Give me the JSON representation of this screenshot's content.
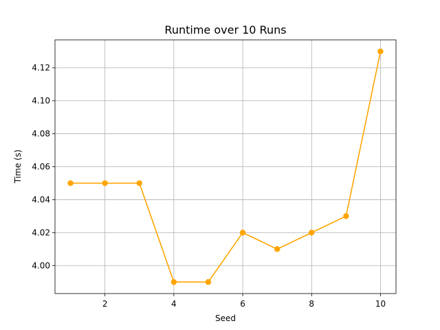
{
  "chart_data": {
    "type": "line",
    "title": "Runtime over 10 Runs",
    "xlabel": "Seed",
    "ylabel": "Time (s)",
    "x": [
      1,
      2,
      3,
      4,
      5,
      6,
      7,
      8,
      9,
      10
    ],
    "series": [
      {
        "values": [
          4.05,
          4.05,
          4.05,
          3.99,
          3.99,
          4.02,
          4.01,
          4.02,
          4.03,
          4.13
        ]
      }
    ],
    "xlim": [
      0.55,
      10.45
    ],
    "ylim": [
      3.983,
      4.137
    ],
    "xticks": [
      2,
      4,
      6,
      8,
      10
    ],
    "yticks": [
      4.0,
      4.02,
      4.04,
      4.06,
      4.08,
      4.1,
      4.12
    ],
    "ytick_labels": [
      "4.00",
      "4.02",
      "4.04",
      "4.06",
      "4.08",
      "4.10",
      "4.12"
    ],
    "grid": true,
    "marker": "circle",
    "colors": {
      "line": "#ffa500"
    }
  }
}
